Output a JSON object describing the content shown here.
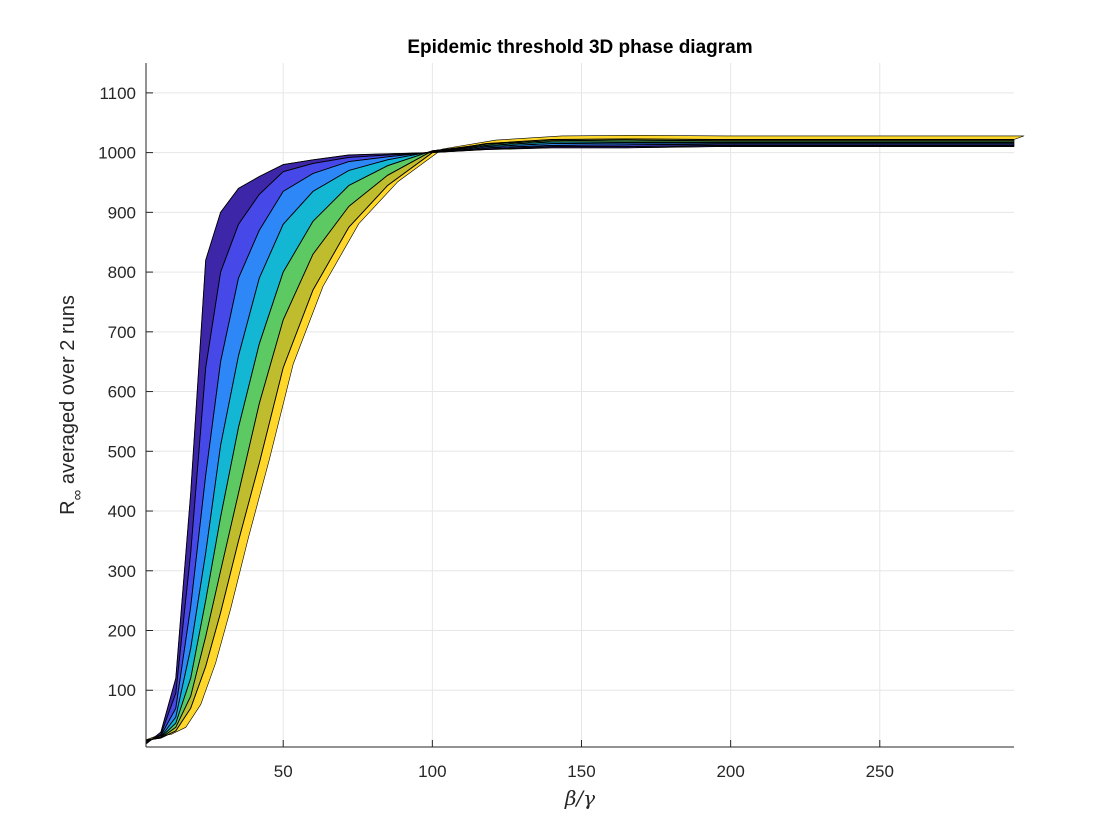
{
  "chart_data": {
    "type": "area",
    "title": "Epidemic threshold 3D phase diagram",
    "xlabel": "β/γ",
    "ylabel": {
      "main": "R",
      "subscript": "∞",
      "rest": " averaged over 2 runs"
    },
    "xlim": [
      4,
      295
    ],
    "ylim": [
      5,
      1150
    ],
    "xticks": [
      50,
      100,
      150,
      200,
      250
    ],
    "yticks": [
      100,
      200,
      300,
      400,
      500,
      600,
      700,
      800,
      900,
      1000,
      1100
    ],
    "grid": true,
    "legend": "none",
    "colors": [
      "#3e26a8",
      "#4648e8",
      "#2e87f7",
      "#13b7d4",
      "#5dc963",
      "#bfbd2e",
      "#fed72a"
    ],
    "x": [
      4,
      9,
      14,
      19,
      24,
      29,
      35,
      42,
      50,
      60,
      72,
      85,
      100,
      118,
      140,
      165,
      195,
      230,
      265,
      295
    ],
    "series": [
      {
        "values": [
          10,
          30,
          120,
          430,
          820,
          900,
          940,
          960,
          980,
          988,
          996,
          998,
          1000,
          1005,
          1008,
          1008,
          1010,
          1010,
          1010,
          1010
        ]
      },
      {
        "values": [
          12,
          26,
          95,
          330,
          640,
          800,
          880,
          930,
          968,
          982,
          992,
          996,
          1000,
          1006,
          1010,
          1010,
          1012,
          1012,
          1012,
          1012
        ]
      },
      {
        "values": [
          14,
          24,
          70,
          240,
          460,
          650,
          790,
          870,
          935,
          965,
          985,
          993,
          1001,
          1008,
          1012,
          1013,
          1014,
          1014,
          1014,
          1014
        ]
      },
      {
        "values": [
          15,
          22,
          55,
          170,
          330,
          510,
          660,
          790,
          880,
          935,
          970,
          988,
          1002,
          1010,
          1015,
          1016,
          1016,
          1016,
          1016,
          1016
        ]
      },
      {
        "values": [
          16,
          21,
          45,
          120,
          250,
          390,
          540,
          680,
          800,
          885,
          945,
          978,
          1003,
          1012,
          1018,
          1018,
          1018,
          1018,
          1018,
          1018
        ]
      },
      {
        "values": [
          16,
          20,
          38,
          90,
          190,
          300,
          430,
          580,
          720,
          830,
          910,
          962,
          1003,
          1014,
          1020,
          1021,
          1020,
          1020,
          1020,
          1020
        ]
      },
      {
        "values": [
          17,
          20,
          32,
          70,
          140,
          230,
          350,
          480,
          640,
          770,
          875,
          945,
          1000,
          1015,
          1022,
          1023,
          1022,
          1022,
          1022,
          1022
        ]
      }
    ]
  }
}
